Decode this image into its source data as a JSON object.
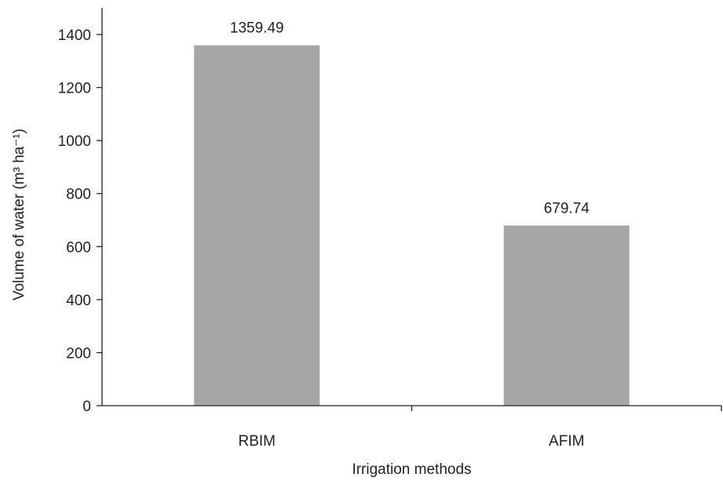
{
  "chart_data": {
    "type": "bar",
    "categories": [
      "RBIM",
      "AFIM"
    ],
    "values": [
      1359.49,
      679.74
    ],
    "data_labels": [
      "1359.49",
      "679.74"
    ],
    "xlabel": "Irrigation methods",
    "ylabel": "Volume of water (m³ ha⁻¹)",
    "ylim": [
      0,
      1400
    ],
    "yticks": [
      0,
      200,
      400,
      600,
      800,
      1000,
      1200,
      1400
    ],
    "grid": false,
    "legend": "none",
    "bar_color": "#a6a6a6",
    "axis_color": "#222222"
  }
}
